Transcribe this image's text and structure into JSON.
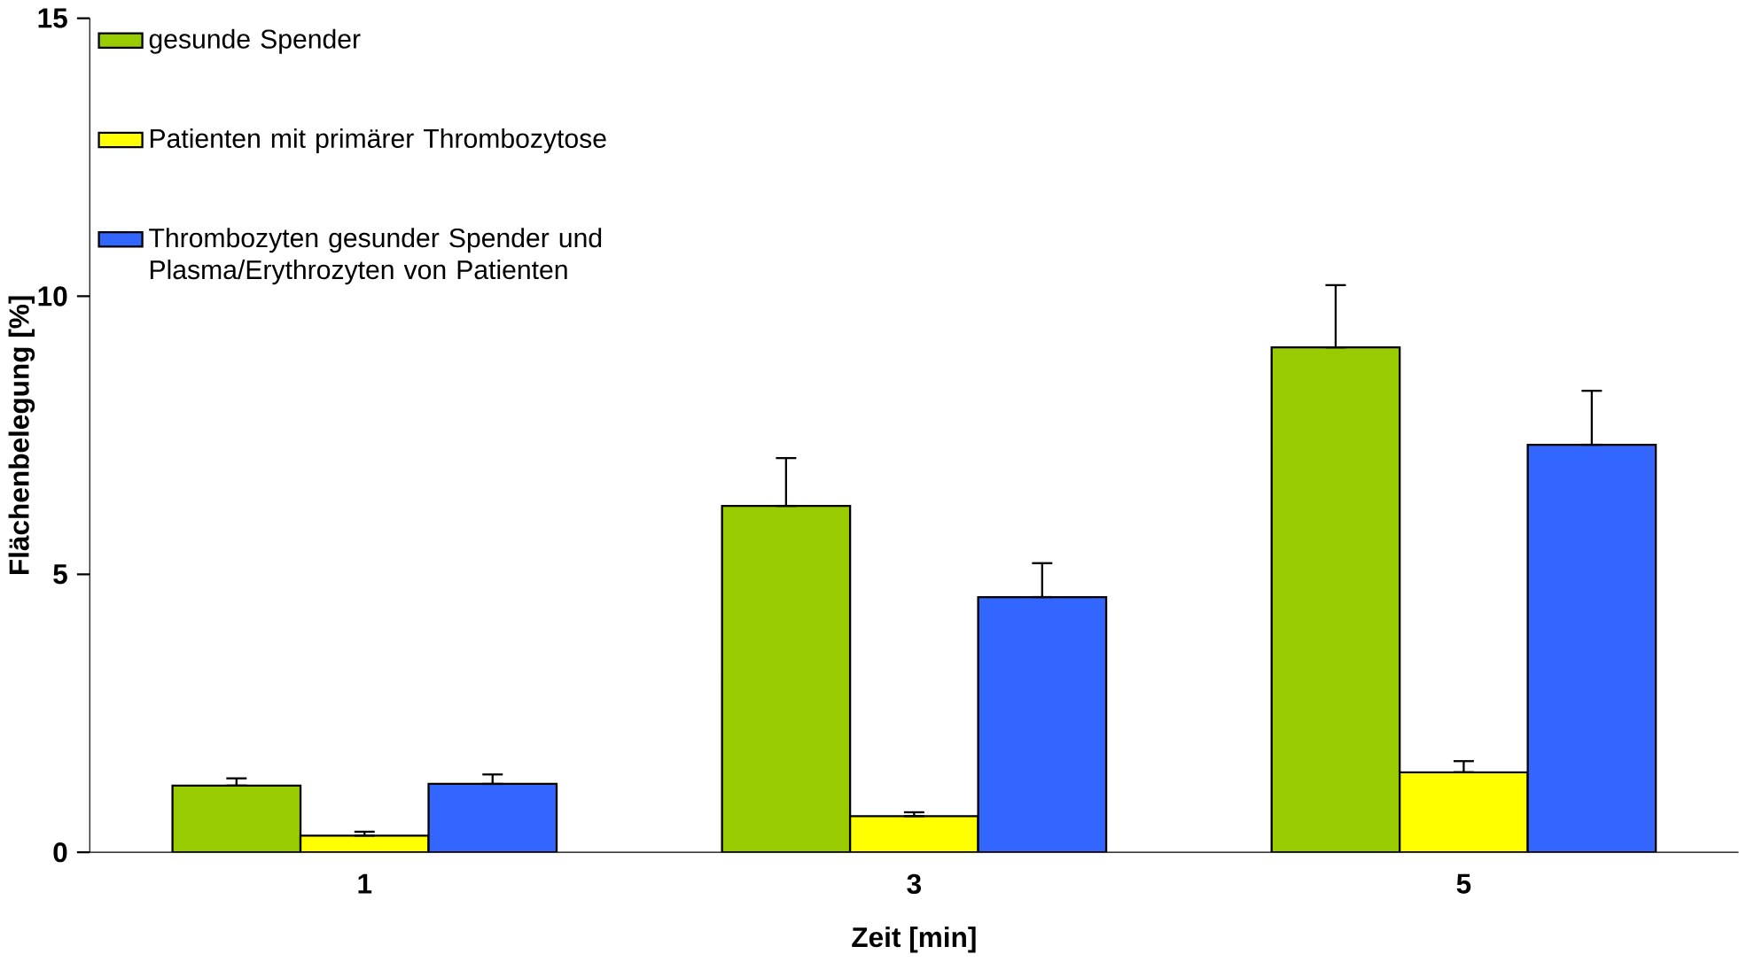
{
  "chart_data": {
    "type": "bar",
    "xlabel": "Zeit [min]",
    "ylabel": "Flächenbelegung [%]",
    "categories": [
      "1",
      "3",
      "5"
    ],
    "ylim": [
      0,
      15
    ],
    "yticks": [
      0,
      5,
      10,
      15
    ],
    "legend": "top left",
    "grid": false,
    "series": [
      {
        "name": "gesunde Spender",
        "color": "#99cc00",
        "values": [
          1.2,
          6.23,
          9.08
        ],
        "errors": [
          [
            1.2,
            1.33
          ],
          [
            6.23,
            7.09
          ],
          [
            9.08,
            10.2
          ]
        ]
      },
      {
        "name": "Patienten mit primärer Thrombozytose",
        "color": "#ffff00",
        "values": [
          0.3,
          0.65,
          1.44
        ],
        "errors": [
          [
            0.3,
            0.37
          ],
          [
            0.65,
            0.72
          ],
          [
            1.44,
            1.64
          ]
        ]
      },
      {
        "name": "Thrombozyten gesunder Spender und Plasma/Erythrozyten von Patienten",
        "color": "#3366ff",
        "values": [
          1.23,
          4.59,
          7.33
        ],
        "errors": [
          [
            1.23,
            1.4
          ],
          [
            4.59,
            5.2
          ],
          [
            7.33,
            8.3
          ]
        ]
      }
    ]
  }
}
